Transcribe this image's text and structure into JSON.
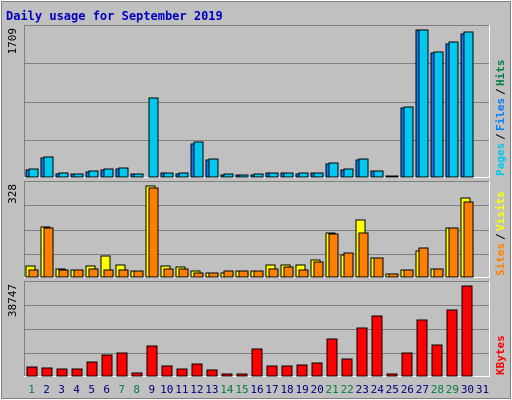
{
  "chart_data": {
    "type": "bar",
    "title": "Daily usage for September 2019",
    "categories": [
      "1",
      "2",
      "3",
      "4",
      "5",
      "6",
      "7",
      "8",
      "9",
      "10",
      "11",
      "12",
      "13",
      "14",
      "15",
      "16",
      "17",
      "18",
      "19",
      "20",
      "21",
      "22",
      "23",
      "24",
      "25",
      "26",
      "27",
      "28",
      "29",
      "30",
      "31"
    ],
    "weekend_days": [
      "1",
      "7",
      "8",
      "14",
      "15",
      "21",
      "22",
      "28",
      "29"
    ],
    "panels": [
      {
        "id": "hits",
        "max_label": "1709",
        "ylim": [
          0,
          1709
        ],
        "right_labels": [
          "Hits",
          "Files",
          "Pages"
        ],
        "series": [
          {
            "name": "Pages",
            "color": "#0080ff",
            "values": [
              85,
              220,
              40,
              30,
              60,
              85,
              95,
              30,
              0,
              45,
              40,
              385,
              200,
              25,
              20,
              20,
              45,
              45,
              40,
              45,
              155,
              85,
              200,
              70,
              10,
              805,
              1709,
              1440,
              1550,
              1660,
              0
            ]
          },
          {
            "name": "Files",
            "color": "#00c8f0",
            "values": [
              90,
              235,
              45,
              35,
              70,
              90,
              100,
              35,
              915,
              45,
              45,
              405,
              210,
              30,
              20,
              30,
              50,
              50,
              45,
              50,
              160,
              90,
              210,
              75,
              15,
              810,
              1709,
              1450,
              1565,
              1680,
              0
            ]
          }
        ]
      },
      {
        "id": "sites",
        "max_label": "328",
        "ylim": [
          0,
          328
        ],
        "right_labels": [
          "Visits",
          "Sites"
        ],
        "series": [
          {
            "name": "Visits",
            "color": "#ffff00",
            "values": [
              40,
              180,
              30,
              25,
              40,
              75,
              45,
              20,
              328,
              40,
              35,
              20,
              15,
              15,
              20,
              20,
              45,
              45,
              45,
              60,
              160,
              80,
              205,
              70,
              10,
              25,
              95,
              30,
              175,
              285,
              0
            ]
          },
          {
            "name": "Sites",
            "color": "#ff8000",
            "values": [
              25,
              175,
              25,
              25,
              30,
              25,
              25,
              20,
              320,
              30,
              30,
              15,
              15,
              20,
              20,
              20,
              30,
              35,
              25,
              55,
              155,
              85,
              160,
              70,
              10,
              25,
              105,
              30,
              175,
              270,
              0
            ]
          }
        ]
      },
      {
        "id": "kbytes",
        "max_label": "38747",
        "ylim": [
          0,
          38747
        ],
        "right_labels": [
          "KBytes"
        ],
        "series": [
          {
            "name": "KBytes",
            "color": "#ff0000",
            "values": [
              3800,
              3400,
              3200,
              2800,
              5900,
              9200,
              9700,
              1500,
              13100,
              4300,
              2900,
              5300,
              2400,
              900,
              700,
              11800,
              4500,
              4400,
              4800,
              5700,
              16000,
              7300,
              20500,
              25800,
              800,
              9700,
              24300,
              13200,
              28300,
              38747,
              0
            ]
          }
        ]
      }
    ]
  },
  "colors": {
    "frame_bg": "#c0c0c0",
    "plot_bg": "#c0c0c0",
    "title": "#0000c0",
    "weekday": "#000080",
    "weekend": "#008040",
    "kbytes": "#ff0000",
    "hits": "#008040",
    "files": "#0080ff",
    "pages": "#00c8f0",
    "visits": "#ffff00",
    "sites": "#ff8000"
  }
}
